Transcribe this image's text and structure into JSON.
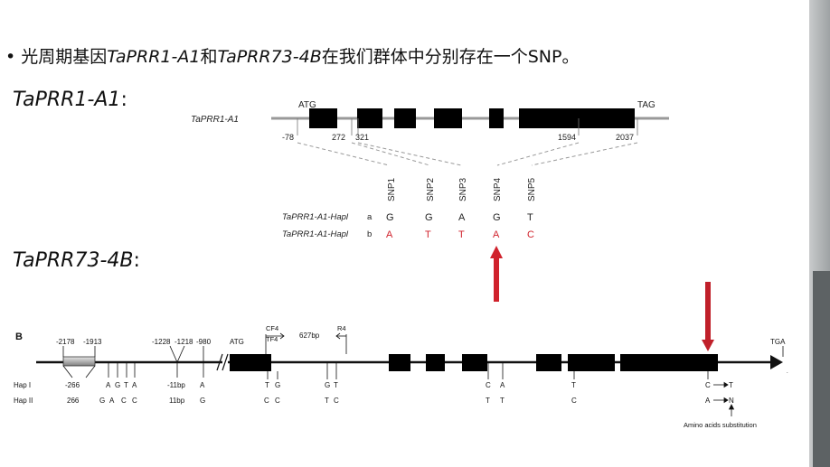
{
  "slide": {
    "bullet": "•",
    "title_prefix": "光周期基因",
    "gene1": "TaPRR1-A1",
    "connector": "和",
    "gene2": "TaPRR73-4B",
    "title_suffix": "在我们群体中分别存在一个SNP。",
    "heading1": "TaPRR1-A1",
    "heading1_colon": ":",
    "heading2": "TaPRR73-4B",
    "heading2_colon": ":"
  },
  "diagram_a": {
    "gene_label": "TaPRR1-A1",
    "start_codon": "ATG",
    "stop_codon": "TAG",
    "positions": [
      "-78",
      "272",
      "321",
      "1594",
      "2037"
    ],
    "snps": [
      "SNP1",
      "SNP2",
      "SNP3",
      "SNP4",
      "SNP5"
    ],
    "hap_a_label": "TaPRR1-A1-Hapl",
    "hap_a_suffix": "a",
    "hap_a_alleles": [
      "G",
      "G",
      "A",
      "G",
      "T"
    ],
    "hap_b_label": "TaPRR1-A1-Hapl",
    "hap_b_suffix": "b",
    "hap_b_alleles": [
      "A",
      "T",
      "T",
      "A",
      "C"
    ],
    "allele_change_color": "#d0222c"
  },
  "diagram_b": {
    "panel_label": "B",
    "promoter_positions": [
      "-2178",
      "-1913",
      "-1228",
      "-1218",
      "-980"
    ],
    "start_codon": "ATG",
    "stop_codon": "TGA",
    "primer_cf4": "CF4",
    "primer_tf4": "TF4",
    "amplicon": "627bp",
    "primer_r4": "R4",
    "hap1_label": "Hap I",
    "hap2_label": "Hap II",
    "hap1_variants": [
      "-266",
      "A",
      "G",
      "T",
      "A",
      "-11bp",
      "A",
      "T",
      "G",
      "G",
      "T",
      "C",
      "A",
      "T",
      "C",
      "T"
    ],
    "hap2_variants": [
      "266",
      "G",
      "A",
      "C",
      "C",
      "11bp",
      "G",
      "C",
      "C",
      "T",
      "C",
      "T",
      "T",
      "C",
      "A",
      "N"
    ],
    "substitution_note": "Amino acids substitution",
    "arrow_color": "#c0202a"
  }
}
